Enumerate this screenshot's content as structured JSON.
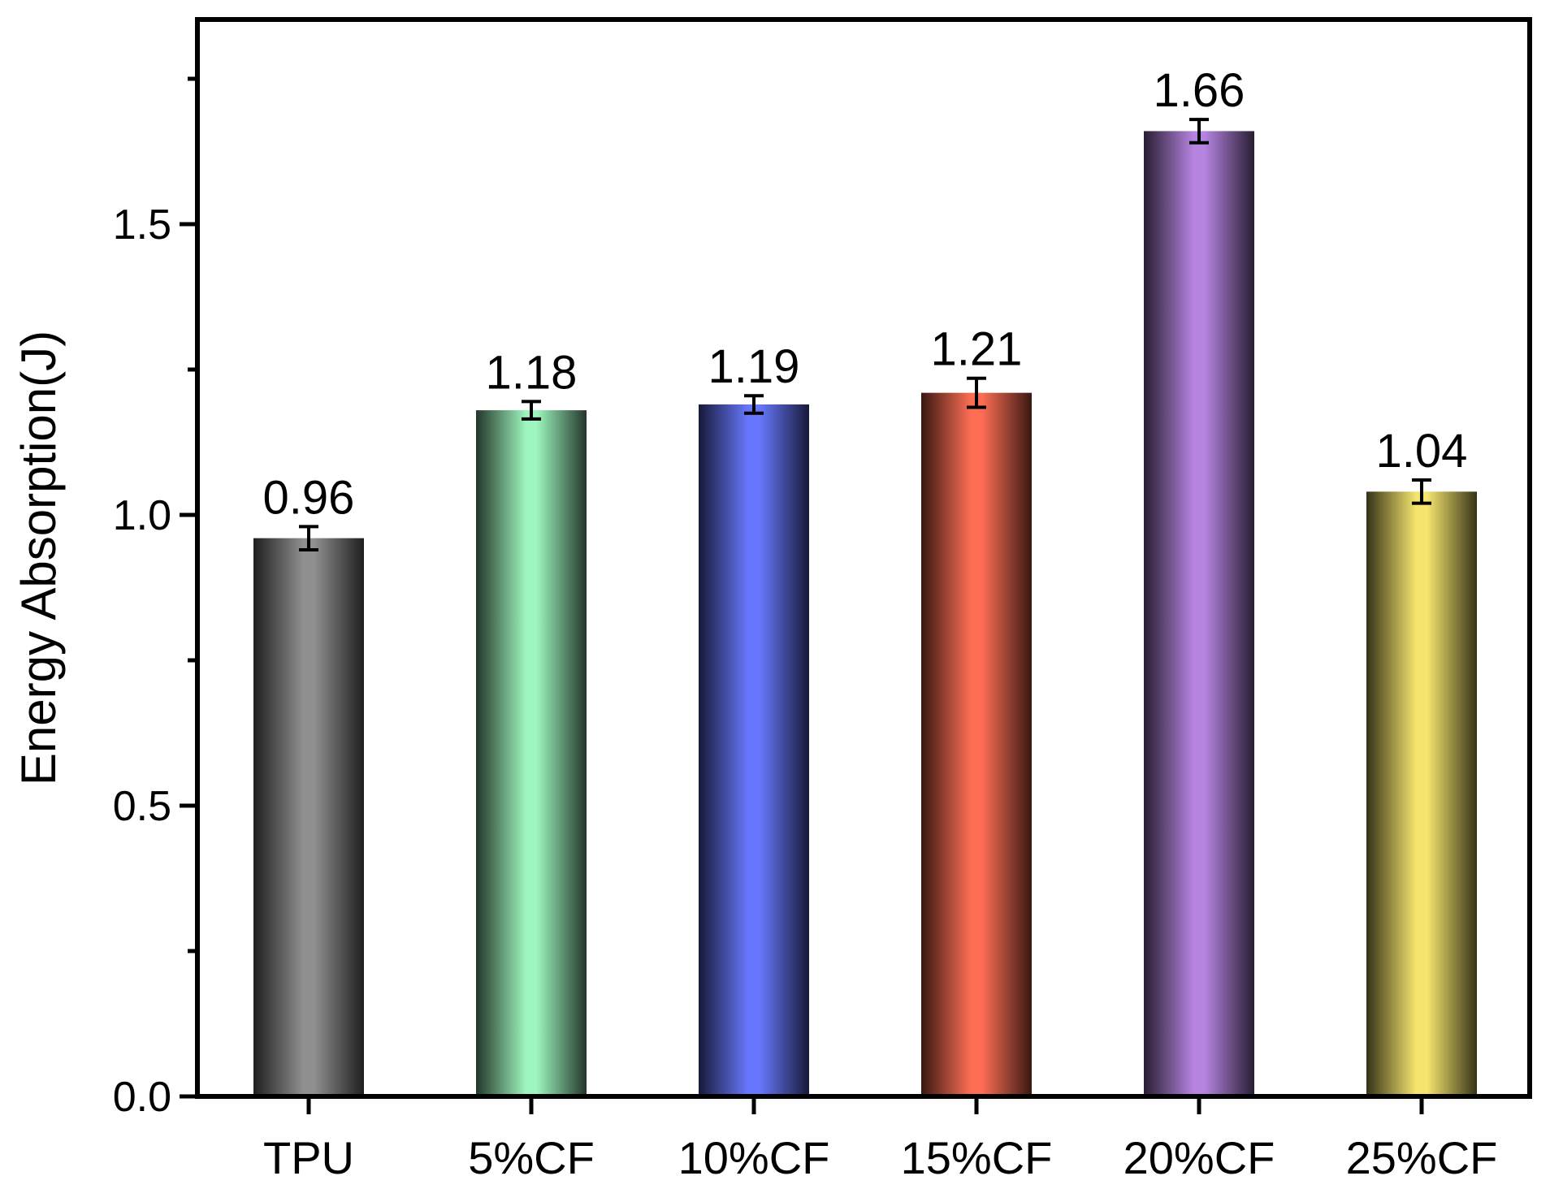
{
  "chart_data": {
    "type": "bar",
    "title": "",
    "xlabel": "",
    "ylabel": "Energy Absorption(J)",
    "ylim": [
      0,
      1.85
    ],
    "yticks": [
      "0.0",
      "0.5",
      "1.0",
      "1.5"
    ],
    "yminor_ticks": [
      0.25,
      0.75,
      1.25,
      1.75
    ],
    "grid": false,
    "legend": "none",
    "categories": [
      "TPU",
      "5%CF",
      "10%CF",
      "15%CF",
      "20%CF",
      "25%CF"
    ],
    "values": [
      0.96,
      1.18,
      1.19,
      1.21,
      1.66,
      1.04
    ],
    "value_labels": [
      "0.96",
      "1.18",
      "1.19",
      "1.21",
      "1.66",
      "1.04"
    ],
    "errors": [
      0.02,
      0.015,
      0.015,
      0.025,
      0.02,
      0.02
    ],
    "colors": [
      "#8f8f8f",
      "#9ef5bd",
      "#6878fd",
      "#fd6e54",
      "#b584e0",
      "#f5e56e"
    ]
  }
}
